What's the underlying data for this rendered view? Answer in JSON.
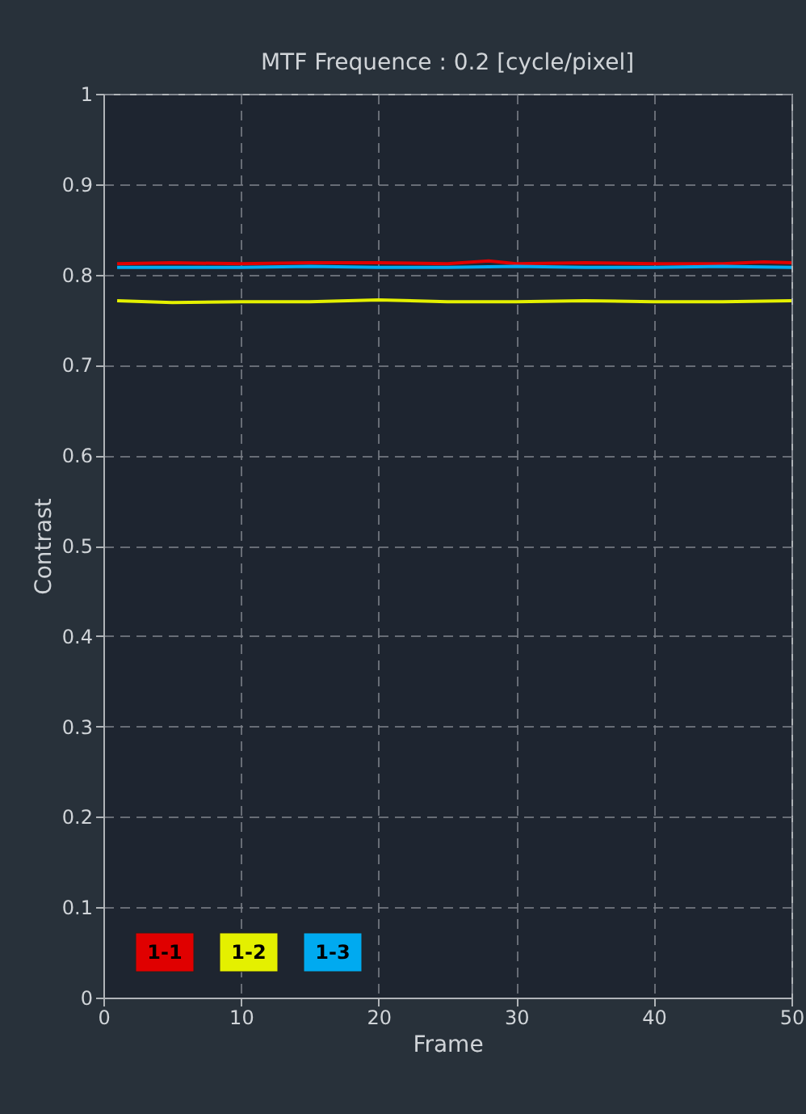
{
  "chart_data": {
    "type": "line",
    "title": "MTF Frequence : 0.2 [cycle/pixel]",
    "xlabel": "Frame",
    "ylabel": "Contrast",
    "series": [
      {
        "name": "1-1",
        "color": "#e00000",
        "x": [
          1,
          5,
          10,
          15,
          20,
          25,
          28,
          30,
          35,
          40,
          45,
          48,
          50
        ],
        "values": [
          0.812,
          0.813,
          0.812,
          0.813,
          0.813,
          0.812,
          0.815,
          0.812,
          0.813,
          0.812,
          0.812,
          0.814,
          0.813
        ]
      },
      {
        "name": "1-2",
        "color": "#e4f000",
        "x": [
          1,
          5,
          10,
          15,
          20,
          25,
          30,
          35,
          40,
          45,
          50
        ],
        "values": [
          0.771,
          0.769,
          0.77,
          0.77,
          0.772,
          0.77,
          0.77,
          0.771,
          0.77,
          0.77,
          0.771
        ]
      },
      {
        "name": "1-3",
        "color": "#00aaf0",
        "x": [
          1,
          5,
          10,
          15,
          20,
          25,
          30,
          35,
          40,
          45,
          50
        ],
        "values": [
          0.808,
          0.808,
          0.808,
          0.809,
          0.808,
          0.808,
          0.809,
          0.808,
          0.808,
          0.809,
          0.808
        ]
      }
    ],
    "xlim": [
      0,
      50
    ],
    "xticks": [
      0,
      10,
      20,
      30,
      40,
      50
    ],
    "ylim": [
      0,
      1
    ],
    "yticks": [
      0,
      0.1,
      0.2,
      0.3,
      0.4,
      0.5,
      0.6,
      0.7,
      0.8,
      0.9,
      1
    ],
    "grid": true,
    "legend": "bottom left",
    "marker": "none",
    "line_style": "solid"
  }
}
